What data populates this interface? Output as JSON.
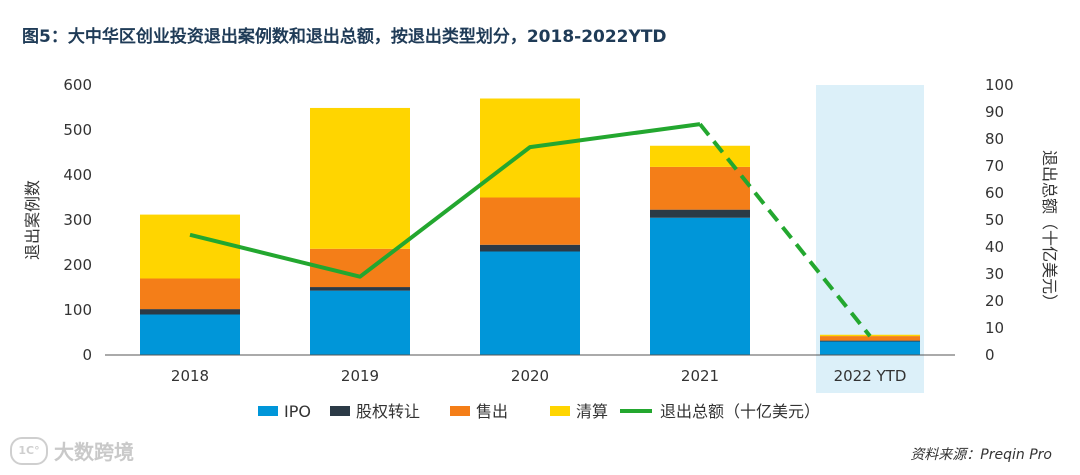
{
  "title": "图5：大中华区创业投资退出案例数和退出总额，按退出类型划分，2018-2022YTD",
  "source": "资料来源：Preqin Pro",
  "watermark": {
    "logo": "1C°",
    "text": "大数跨境"
  },
  "colors": {
    "ipo": "#0096d9",
    "equity": "#2b3a46",
    "sale": "#f47e18",
    "liquidation": "#ffd500",
    "line": "#23a72f",
    "highlight": "#dcf0f9"
  },
  "chart_data": {
    "type": "bar",
    "stacked": true,
    "title": "大中华区创业投资退出案例数和退出总额，按退出类型划分，2018-2022YTD",
    "categories": [
      "2018",
      "2019",
      "2020",
      "2021",
      "2022 YTD"
    ],
    "highlight_category": "2022 YTD",
    "ylabel": "退出案例数",
    "ylim": [
      0,
      600
    ],
    "yticks": [
      0,
      100,
      200,
      300,
      400,
      500,
      600
    ],
    "y2label": "退出总额（十亿美元）",
    "y2lim": [
      0,
      100
    ],
    "y2ticks": [
      0,
      10,
      20,
      30,
      40,
      50,
      60,
      70,
      80,
      90,
      100
    ],
    "series": [
      {
        "name": "IPO",
        "key": "ipo",
        "values": [
          90,
          143,
          230,
          305,
          30
        ]
      },
      {
        "name": "股权转让",
        "key": "equity",
        "values": [
          12,
          8,
          15,
          18,
          2
        ]
      },
      {
        "name": "售出",
        "key": "sale",
        "values": [
          68,
          85,
          105,
          95,
          10
        ]
      },
      {
        "name": "清算",
        "key": "liquidation",
        "values": [
          142,
          313,
          220,
          47,
          3
        ]
      }
    ],
    "line_series": {
      "name": "退出总额（十亿美元）",
      "axis": "right",
      "values": [
        44.5,
        29,
        77,
        85.5,
        7
      ],
      "dashed_from_index": 3
    },
    "legend": [
      "IPO",
      "股权转让",
      "售出",
      "清算",
      "退出总额（十亿美元）"
    ],
    "legend_position": "bottom"
  }
}
